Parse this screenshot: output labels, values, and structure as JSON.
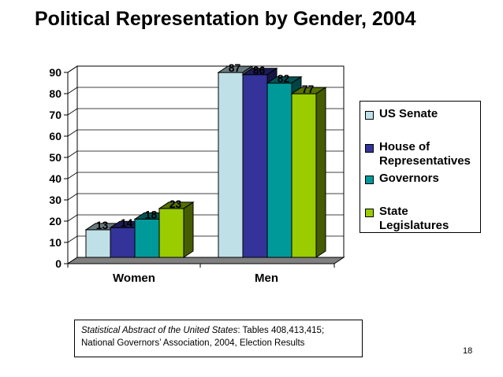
{
  "chart_data": {
    "type": "bar",
    "title": "Political Representation by Gender, 2004",
    "categories": [
      "Women",
      "Men"
    ],
    "series": [
      {
        "name": "US Senate",
        "values": [
          13,
          87
        ],
        "color": "#bfe0e6"
      },
      {
        "name": "House of Representatives",
        "values": [
          14,
          86
        ],
        "color": "#33339a"
      },
      {
        "name": "Governors",
        "values": [
          18,
          82
        ],
        "color": "#00999a"
      },
      {
        "name": "State Legislatures",
        "values": [
          23,
          77
        ],
        "color": "#9acc00"
      }
    ],
    "ylim": [
      0,
      90
    ],
    "yticks": [
      0,
      10,
      20,
      30,
      40,
      50,
      60,
      70,
      80,
      90
    ],
    "xlabel": "",
    "ylabel": "",
    "legend_position": "right",
    "grid": true,
    "data_labels": true,
    "style": "3d-column"
  },
  "legend": {
    "items": [
      {
        "label_lines": [
          "US Senate"
        ]
      },
      {
        "label_lines": [
          "House of",
          "Representatives"
        ]
      },
      {
        "label_lines": [
          "Governors"
        ]
      },
      {
        "label_lines": [
          "State",
          "Legislatures"
        ]
      }
    ]
  },
  "source": {
    "italic": "Statistical Abstract of the United States",
    "rest_line1": ": Tables 408,413,415;",
    "line2": "National Governors’ Association, 2004, Election Results"
  },
  "page_number": "18"
}
